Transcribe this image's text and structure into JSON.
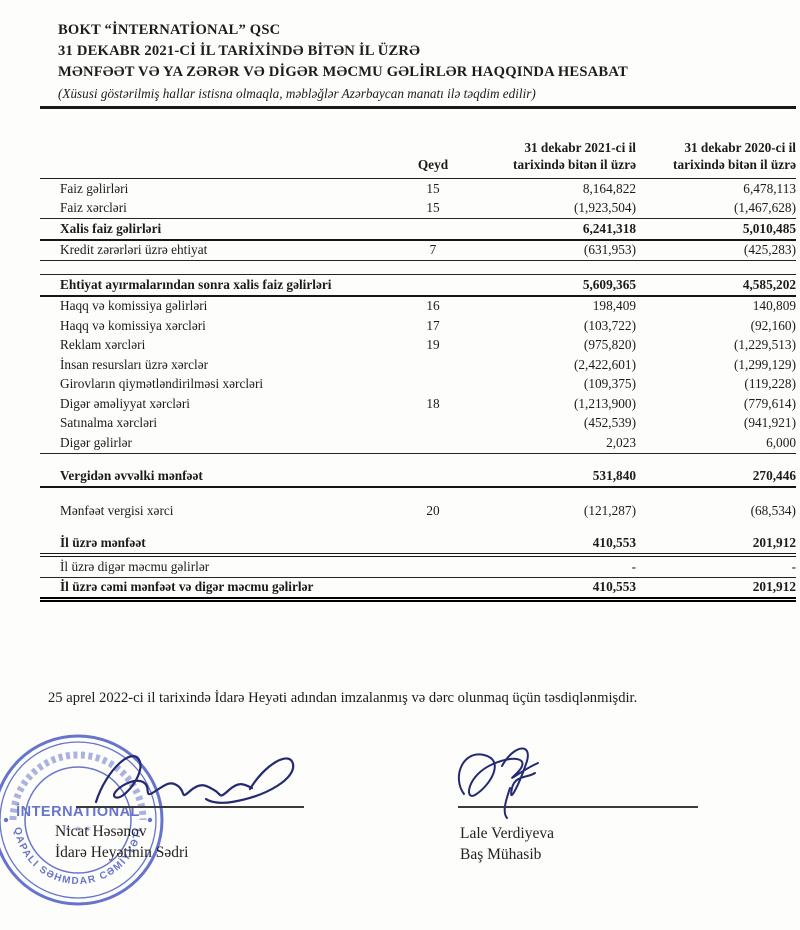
{
  "header": {
    "company": "BOKT “İNTERNATİONAL” QSC",
    "period_line": "31 DEKABR 2021-Cİ İL TARİXİNDƏ BİTƏN İL ÜZRƏ",
    "title_line": "MƏNFƏƏT VƏ YA ZƏRƏR VƏ DİGƏR MƏCMU GƏLİRLƏR HAQQINDA HESABAT",
    "currency_note": "(Xüsusi göstərilmiş hallar istisna olmaqla, məbləğlər Azərbaycan manatı ilə təqdim edilir)"
  },
  "table": {
    "columns": {
      "note": "Qeyd",
      "y2021": "31 dekabr 2021-ci il tarixində bitən il üzrə",
      "y2020": "31 dekabr 2020-ci il tarixində bitən il üzrə"
    },
    "rows": [
      {
        "label": "Faiz gəlirləri",
        "note": "15",
        "v2021": "8,164,822",
        "v2020": "6,478,113"
      },
      {
        "label": "Faiz xərcləri",
        "note": "15",
        "v2021": "(1,923,504)",
        "v2020": "(1,467,628)",
        "border_bottom": "thin"
      },
      {
        "label": "Xalis faiz gəlirləri",
        "bold": true,
        "v2021": "6,241,318",
        "v2020": "5,010,485",
        "border_bottom": "thick"
      },
      {
        "label": "Kredit zərərləri üzrə ehtiyat",
        "note": "7",
        "v2021": "(631,953)",
        "v2020": "(425,283)",
        "border_bottom": "thin"
      },
      {
        "spacer": true
      },
      {
        "label": "Ehtiyat ayırmalarından sonra xalis faiz gəlirləri",
        "bold": true,
        "v2021": "5,609,365",
        "v2020": "4,585,202",
        "border_top": "thin",
        "border_bottom": "thick"
      },
      {
        "label": "Haqq və komissiya gəlirləri",
        "note": "16",
        "v2021": "198,409",
        "v2020": "140,809"
      },
      {
        "label": "Haqq və komissiya xərcləri",
        "note": "17",
        "v2021": "(103,722)",
        "v2020": "(92,160)"
      },
      {
        "label": "Reklam xərcləri",
        "note": "19",
        "v2021": "(975,820)",
        "v2020": "(1,229,513)"
      },
      {
        "label": "İnsan resursları üzrə xərclər",
        "v2021": "(2,422,601)",
        "v2020": "(1,299,129)"
      },
      {
        "label": "Girovların qiymətləndirilməsi xərcləri",
        "v2021": "(109,375)",
        "v2020": "(119,228)"
      },
      {
        "label": "Digər əməliyyat xərcləri",
        "note": "18",
        "v2021": "(1,213,900)",
        "v2020": "(779,614)"
      },
      {
        "label": "Satınalma xərcləri",
        "v2021": "(452,539)",
        "v2020": "(941,921)"
      },
      {
        "label": "Digər gəlirlər",
        "v2021": "2,023",
        "v2020": "6,000",
        "border_bottom": "thin"
      },
      {
        "spacer": true
      },
      {
        "label": "Vergidən əvvəlki mənfəət",
        "bold": true,
        "v2021": "531,840",
        "v2020": "270,446",
        "border_bottom": "thick"
      },
      {
        "spacer": true
      },
      {
        "label": "Mənfəət vergisi xərci",
        "note": "20",
        "v2021": "(121,287)",
        "v2020": "(68,534)"
      },
      {
        "spacer": true
      },
      {
        "label": "İl üzrə mənfəət",
        "bold": true,
        "v2021": "410,553",
        "v2020": "201,912",
        "border_bottom": "double"
      },
      {
        "label": "İl üzrə digər məcmu gəlirlər",
        "v2021": "-",
        "v2020": "-",
        "border_bottom": "thin"
      },
      {
        "label": "İl üzrə cəmi mənfəət və digər məcmu gəlirlər",
        "bold": true,
        "v2021": "410,553",
        "v2020": "201,912",
        "border_bottom": "heavy"
      }
    ]
  },
  "footer": {
    "approval": "25 aprel 2022-ci il tarixində İdarə Heyəti adından imzalanmış və dərc olunmaq üçün təsdiqlənmişdir."
  },
  "signatures": {
    "left": {
      "name": "Nicat Həsənov",
      "title": "İdarə Heyətinin Sədri"
    },
    "right": {
      "name": "Lale Verdiyeva",
      "title": "Baş Mühasib"
    }
  },
  "stamp": {
    "center_text": "İNTERNATIONAL",
    "ring_text": "QAPALI SƏHMDAR CƏMİYYƏTİ",
    "color": "#4757c3"
  }
}
